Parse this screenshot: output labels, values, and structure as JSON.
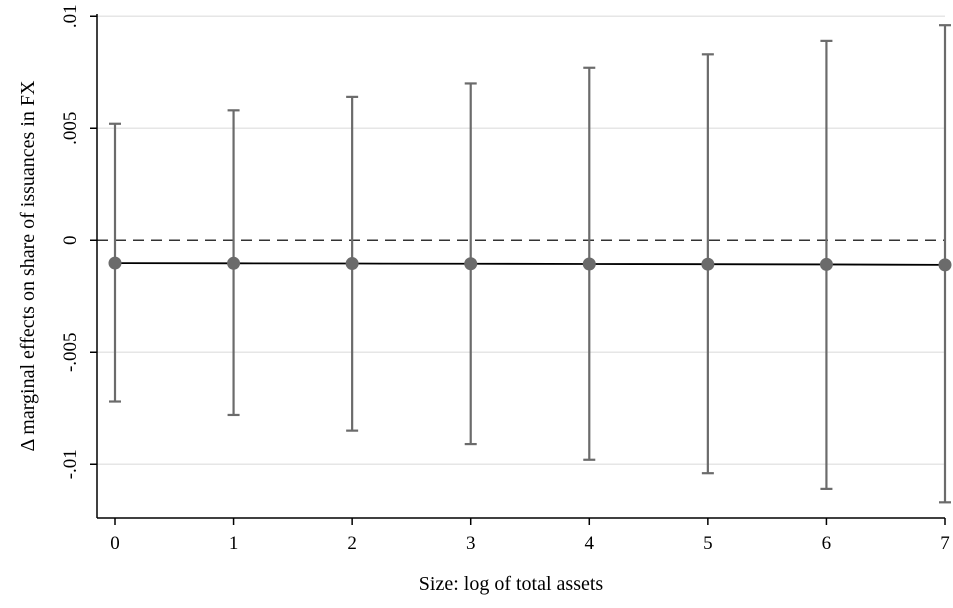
{
  "chart_data": {
    "type": "scatter",
    "xlabel": "Size: log of total assets",
    "ylabel": "Δ marginal effects on share of issuances in FX",
    "x": [
      0,
      1,
      2,
      3,
      4,
      5,
      6,
      7
    ],
    "estimate": [
      -0.00102,
      -0.00103,
      -0.00104,
      -0.00105,
      -0.00106,
      -0.00107,
      -0.00108,
      -0.0011
    ],
    "ci_lower": [
      -0.0072,
      -0.0078,
      -0.0085,
      -0.0091,
      -0.0098,
      -0.0104,
      -0.0111,
      -0.0117
    ],
    "ci_upper": [
      0.0052,
      0.0058,
      0.0064,
      0.007,
      0.0077,
      0.0083,
      0.0089,
      0.0096
    ],
    "xlim": [
      0,
      7
    ],
    "ylim": [
      -0.0124,
      0.0101
    ],
    "x_ticks": [
      0,
      1,
      2,
      3,
      4,
      5,
      6,
      7
    ],
    "x_tick_labels": [
      "0",
      "1",
      "2",
      "3",
      "4",
      "5",
      "6",
      "7"
    ],
    "y_ticks": [
      -0.01,
      -0.005,
      0,
      0.005,
      0.01
    ],
    "y_tick_labels": [
      "-.01",
      "-.005",
      "0",
      ".005",
      ".01"
    ],
    "reference_line": 0,
    "grid": "horizontal",
    "colors": {
      "marker": "#6b6b6b",
      "error_bar": "#6b6b6b",
      "line": "#000000",
      "grid": "#e6e6e6"
    }
  }
}
